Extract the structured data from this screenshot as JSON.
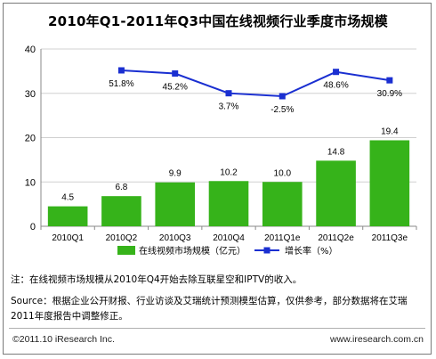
{
  "chart_data": {
    "type": "bar",
    "title": "2010年Q1-2011年Q3中国在线视频行业季度市场规模",
    "categories": [
      "2010Q1",
      "2010Q2",
      "2010Q3",
      "2010Q4",
      "2011Q1e",
      "2011Q2e",
      "2011Q3e"
    ],
    "series": [
      {
        "name": "在线视频市场规模（亿元）",
        "type": "bar",
        "axis": "left",
        "values": [
          4.5,
          6.8,
          9.9,
          10.2,
          10.0,
          14.8,
          19.4
        ],
        "labels": [
          "4.5",
          "6.8",
          "9.9",
          "10.2",
          "10.0",
          "14.8",
          "19.4"
        ],
        "color": "#36b31a"
      },
      {
        "name": "增长率（%）",
        "type": "line",
        "axis": "right",
        "values": [
          null,
          51.8,
          45.2,
          3.7,
          -2.5,
          48.6,
          30.9
        ],
        "labels": [
          "",
          "51.8%",
          "45.2%",
          "3.7%",
          "-2.5%",
          "48.6%",
          "30.9%"
        ],
        "color": "#1a2fd1"
      }
    ],
    "ylim": [
      0,
      40
    ],
    "yticks": [
      "0",
      "10",
      "20",
      "30",
      "40"
    ],
    "grid": true,
    "legend_position": "bottom"
  },
  "footnote": "注：在线视频市场规模从2010年Q4开始去除互联星空和IPTV的收入。",
  "source": "Source：根据企业公开财报、行业访谈及艾瑞统计预测模型估算，仅供参考，部分数据将在艾瑞2011年度报告中调整修正。",
  "copyright": "©2011.10 iResearch Inc.",
  "website": "www.iresearch.com.cn"
}
